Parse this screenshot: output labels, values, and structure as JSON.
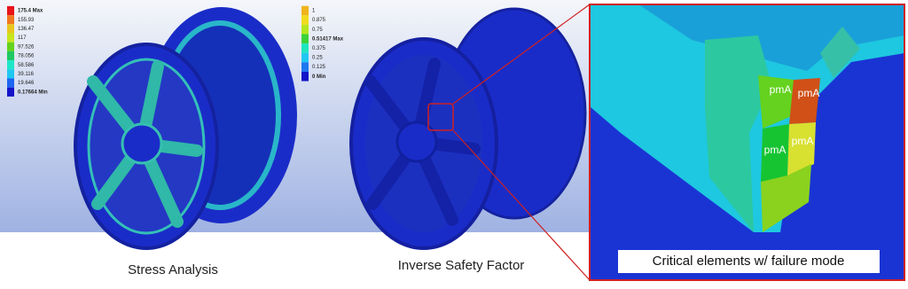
{
  "legend_stress": {
    "entries": [
      {
        "label": "175.4 Max",
        "color": "#e8141a"
      },
      {
        "label": "155.93",
        "color": "#f07820"
      },
      {
        "label": "136.47",
        "color": "#e8c81e"
      },
      {
        "label": "117",
        "color": "#c8e61e"
      },
      {
        "label": "97.526",
        "color": "#64d21e"
      },
      {
        "label": "78.056",
        "color": "#1ec864"
      },
      {
        "label": "58.586",
        "color": "#1ee6c8"
      },
      {
        "label": "39.116",
        "color": "#1ec8f0"
      },
      {
        "label": "19.646",
        "color": "#1e64f0"
      },
      {
        "label": "0.17664 Min",
        "color": "#1414c8"
      }
    ]
  },
  "legend_safety": {
    "entries": [
      {
        "label": "1",
        "color": "#f0b41e"
      },
      {
        "label": "0.875",
        "color": "#f0dc1e"
      },
      {
        "label": "0.75",
        "color": "#b4e61e"
      },
      {
        "label": "0.51417 Max",
        "color": "#3cd23c"
      },
      {
        "label": "0.375",
        "color": "#1ee6be"
      },
      {
        "label": "0.25",
        "color": "#1ec8f0"
      },
      {
        "label": "0.125",
        "color": "#1e78f0"
      },
      {
        "label": "0 Min",
        "color": "#1414c8"
      }
    ]
  },
  "captions": {
    "stress": "Stress Analysis",
    "safety": "Inverse Safety Factor",
    "critical": "Critical elements w/ failure mode"
  },
  "element_labels": [
    "pmA",
    "pmA",
    "pmA",
    "pmA"
  ]
}
